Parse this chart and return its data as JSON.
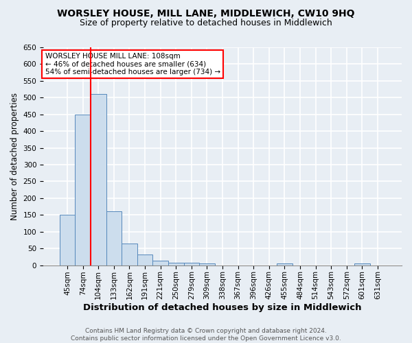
{
  "title": "WORSLEY HOUSE, MILL LANE, MIDDLEWICH, CW10 9HQ",
  "subtitle": "Size of property relative to detached houses in Middlewich",
  "xlabel": "Distribution of detached houses by size in Middlewich",
  "ylabel": "Number of detached properties",
  "categories": [
    "45sqm",
    "74sqm",
    "104sqm",
    "133sqm",
    "162sqm",
    "191sqm",
    "221sqm",
    "250sqm",
    "279sqm",
    "309sqm",
    "338sqm",
    "367sqm",
    "396sqm",
    "426sqm",
    "455sqm",
    "484sqm",
    "514sqm",
    "543sqm",
    "572sqm",
    "601sqm",
    "631sqm"
  ],
  "values": [
    150,
    450,
    510,
    160,
    65,
    33,
    13,
    8,
    7,
    5,
    0,
    0,
    0,
    0,
    6,
    0,
    0,
    0,
    0,
    6,
    0
  ],
  "bar_color": "#ccdded",
  "bar_edge_color": "#5588bb",
  "red_line_index": 2,
  "ylim": [
    0,
    650
  ],
  "yticks": [
    0,
    50,
    100,
    150,
    200,
    250,
    300,
    350,
    400,
    450,
    500,
    550,
    600,
    650
  ],
  "annotation_text": "WORSLEY HOUSE MILL LANE: 108sqm\n← 46% of detached houses are smaller (634)\n54% of semi-detached houses are larger (734) →",
  "annotation_box_color": "white",
  "annotation_box_edge": "red",
  "footer_line1": "Contains HM Land Registry data © Crown copyright and database right 2024.",
  "footer_line2": "Contains public sector information licensed under the Open Government Licence v3.0.",
  "bg_color": "#e8eef4",
  "plot_bg_color": "#e8eef4",
  "grid_color": "#ffffff",
  "title_fontsize": 10,
  "subtitle_fontsize": 9,
  "xlabel_fontsize": 9.5,
  "ylabel_fontsize": 8.5,
  "tick_fontsize": 7.5,
  "footer_fontsize": 6.5,
  "annotation_fontsize": 7.5
}
